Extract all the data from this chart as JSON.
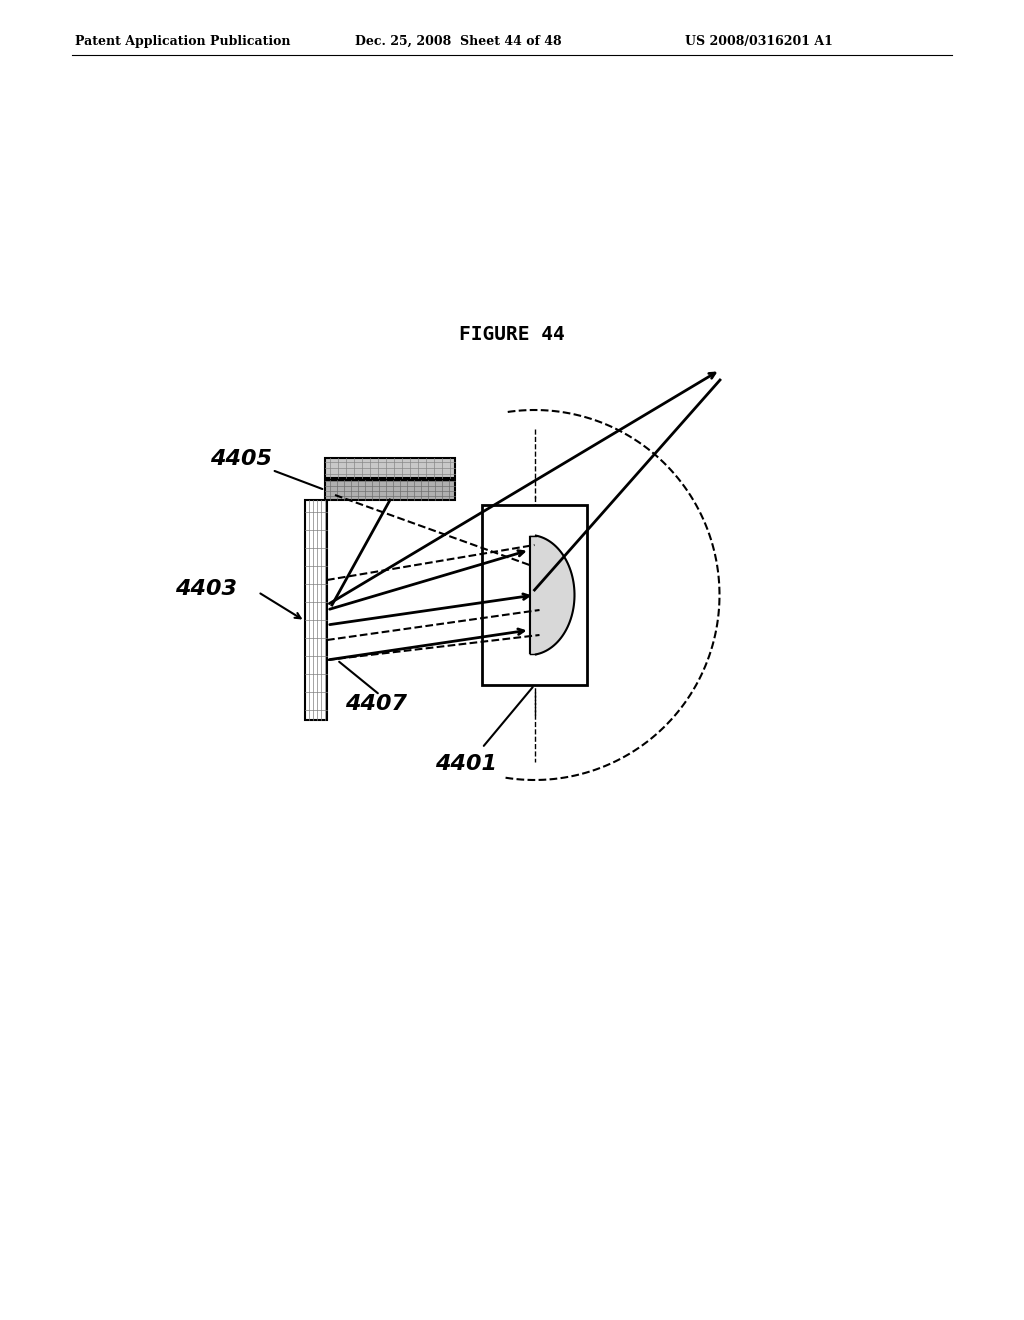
{
  "title": "FIGURE 44",
  "header_left": "Patent Application Publication",
  "header_mid": "Dec. 25, 2008  Sheet 44 of 48",
  "header_right": "US 2008/0316201 A1",
  "bg_color": "#ffffff",
  "text_color": "#000000",
  "label_4405": "4405",
  "label_4403": "4403",
  "label_4407": "4407",
  "label_4401": "4401"
}
